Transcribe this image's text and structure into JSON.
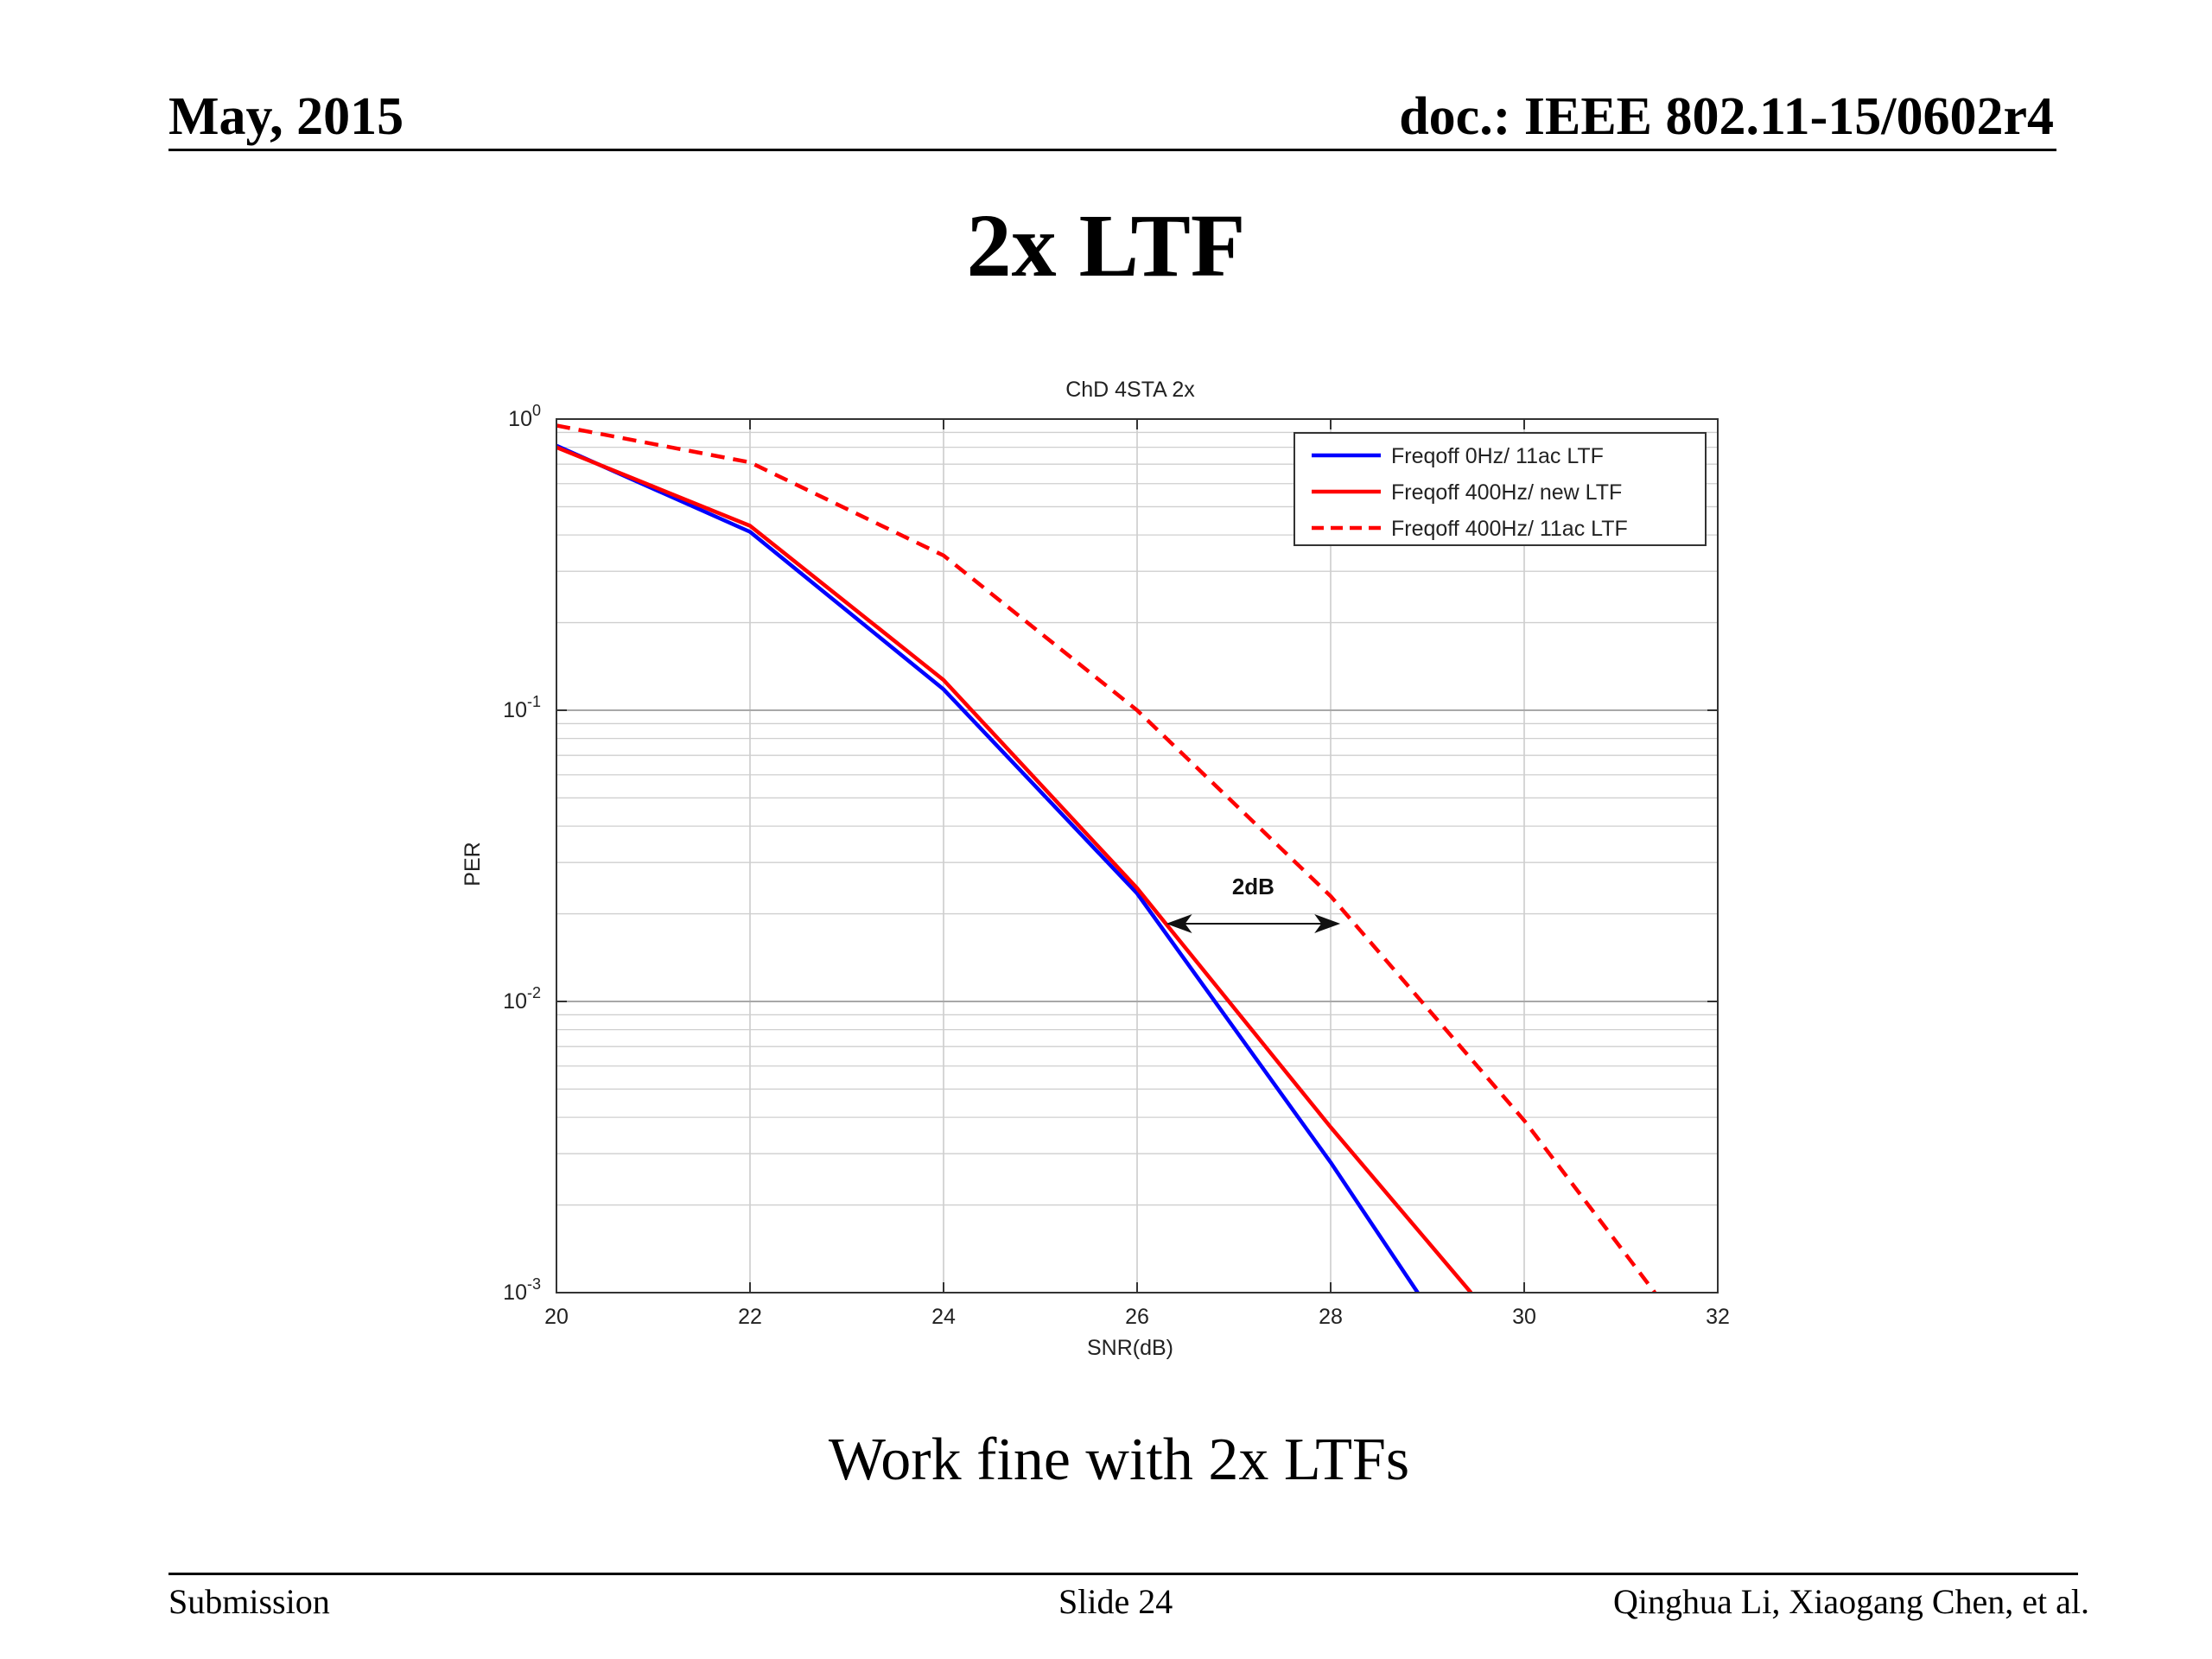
{
  "header": {
    "date": "May, 2015",
    "doc_id": "doc.: IEEE 802.11-15/0602r4"
  },
  "slide_title": "2x LTF",
  "caption": "Work fine with 2x LTFs",
  "footer": {
    "left": "Submission",
    "center": "Slide 24",
    "right": "Qinghua Li, Xiaogang Chen, et al."
  },
  "chart_data": {
    "type": "line",
    "title": "ChD 4STA 2x",
    "xlabel": "SNR(dB)",
    "ylabel": "PER",
    "xlim": [
      20,
      32
    ],
    "ylim": [
      0.001,
      1
    ],
    "yscale": "log",
    "grid": true,
    "legend_position": "top-right",
    "x_ticks": [
      20,
      22,
      24,
      26,
      28,
      30,
      32
    ],
    "y_ticks": [
      {
        "value": 1,
        "base": "10",
        "exp": "0"
      },
      {
        "value": 0.1,
        "base": "10",
        "exp": "-1"
      },
      {
        "value": 0.01,
        "base": "10",
        "exp": "-2"
      },
      {
        "value": 0.001,
        "base": "10",
        "exp": "-3"
      }
    ],
    "series": [
      {
        "name": "Freqoff 0Hz/ 11ac LTF",
        "color": "#0000ff",
        "style": "solid",
        "x": [
          20,
          22,
          24,
          26,
          28,
          28.9
        ],
        "y": [
          0.81,
          0.41,
          0.118,
          0.0235,
          0.0028,
          0.001
        ]
      },
      {
        "name": "Freqoff 400Hz/ new LTF",
        "color": "#ff0000",
        "style": "solid",
        "x": [
          20,
          22,
          24,
          26,
          28,
          29.45
        ],
        "y": [
          0.8,
          0.43,
          0.127,
          0.0245,
          0.0037,
          0.001
        ]
      },
      {
        "name": "Freqoff 400Hz/ 11ac LTF",
        "color": "#ff0000",
        "style": "dashed",
        "x": [
          20,
          22,
          24,
          26,
          28,
          30,
          31.35
        ],
        "y": [
          0.95,
          0.71,
          0.34,
          0.1,
          0.023,
          0.0039,
          0.001
        ]
      }
    ],
    "annotations": [
      {
        "text": "2dB",
        "type": "double-arrow",
        "x_from": 26.3,
        "x_to": 28.1,
        "y": 0.0185
      }
    ]
  }
}
